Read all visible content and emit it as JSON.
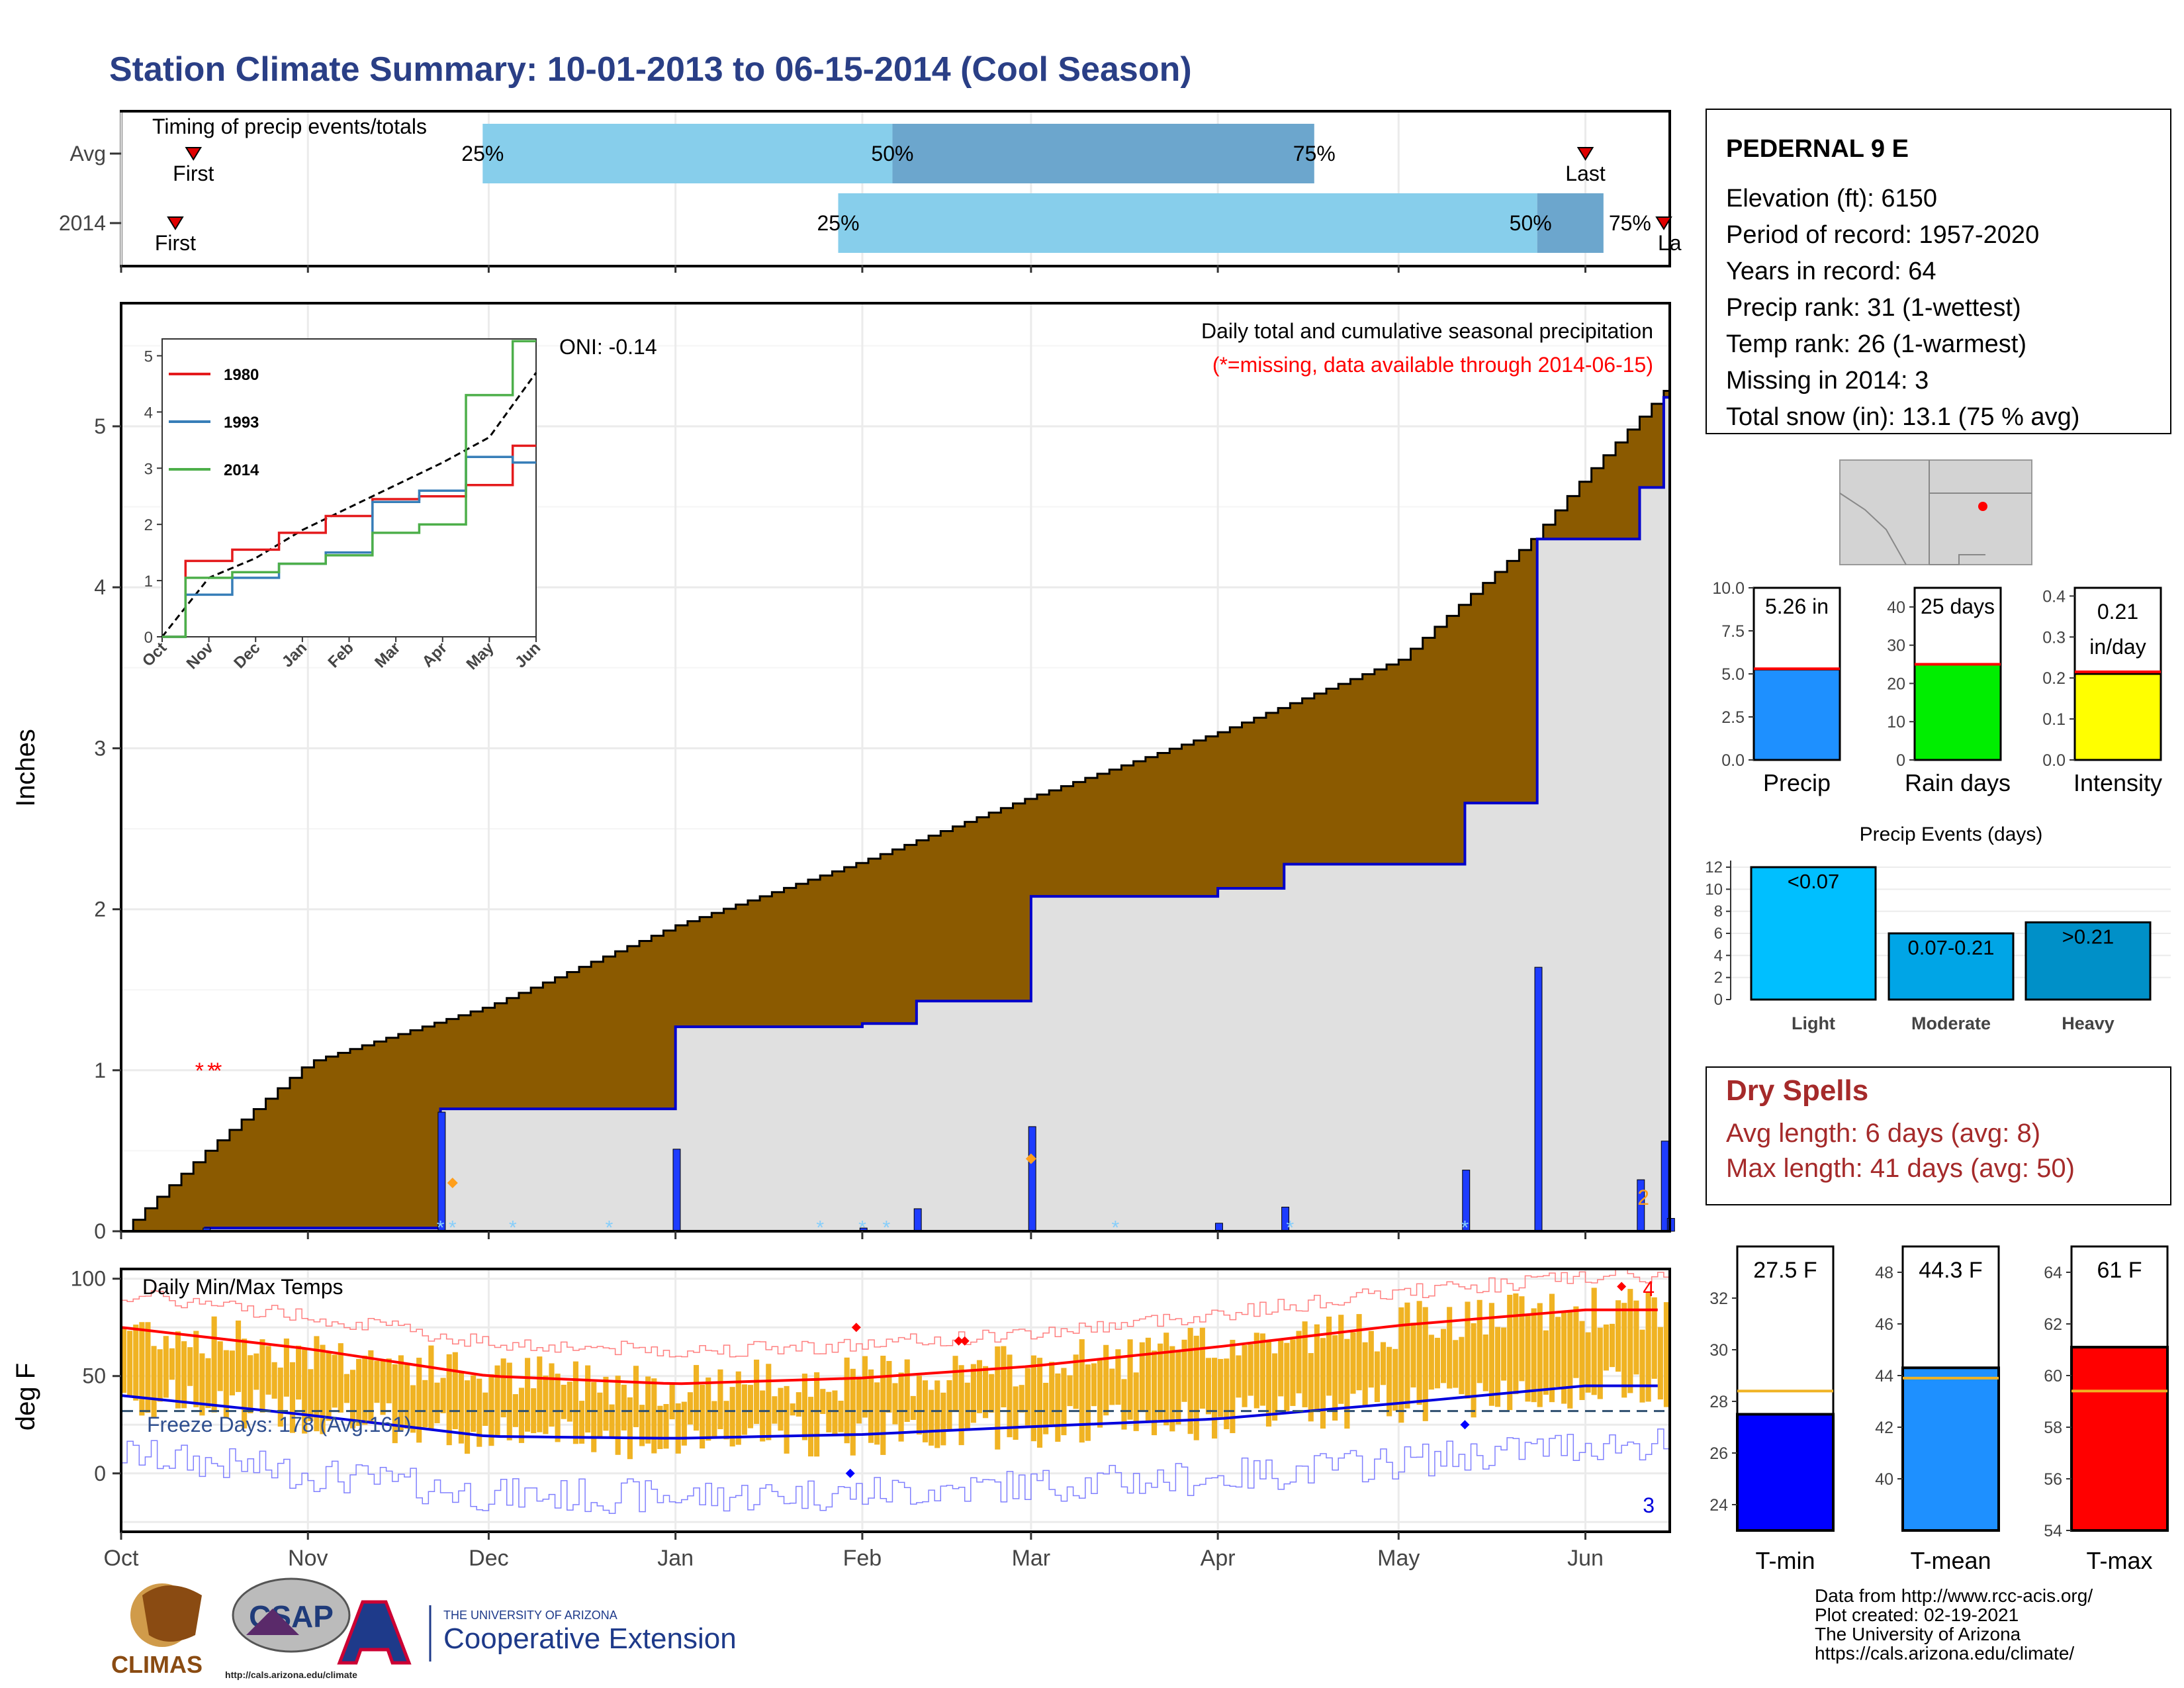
{
  "title": "Station Climate Summary: 10-01-2013 to 06-15-2014 (Cool Season)",
  "timing": {
    "title": "Timing of precip events/totals",
    "rows": [
      {
        "label": "Avg",
        "first": "Oct 13",
        "last": "Jun 1",
        "p25": "Nov 30",
        "p50": "Feb 6",
        "p75": "Apr 17"
      },
      {
        "label": "2014",
        "first": "Oct 10",
        "last": "Jun 15",
        "p25": "Jan 28",
        "p50": "May 24",
        "p75": "Jun 4"
      }
    ],
    "first_label": "First",
    "last_label": "Last",
    "last_label_clipped": "La",
    "pct_labels": [
      "25%",
      "50%",
      "75%"
    ],
    "colors": {
      "light": "#87ceeb",
      "mid": "#6ca6cd",
      "marker": "#e00000"
    }
  },
  "main": {
    "ylabel": "Inches",
    "yticks": [
      0,
      1,
      2,
      3,
      4,
      5
    ],
    "annotation_title": "Daily total and cumulative seasonal precipitation",
    "annotation_missing": "(*=missing, data available through 2014-06-15)",
    "oni": "ONI: -0.14",
    "corner_count": "2",
    "colors": {
      "deficit": "#8b5a00",
      "surplus": "#1f9e1f",
      "fill": "#e0e0e0",
      "line": "#0000cc",
      "missing": "#ff0000",
      "snow": "#87cefa",
      "marker": "#ff9f1c"
    }
  },
  "inset": {
    "yticks": [
      0,
      1,
      2,
      3,
      4,
      5
    ],
    "xticks": [
      "Oct",
      "Nov",
      "Dec",
      "Jan",
      "Feb",
      "Mar",
      "Apr",
      "May",
      "Jun"
    ],
    "legend": [
      {
        "name": "1980",
        "color": "#e41a1c"
      },
      {
        "name": "1993",
        "color": "#377eb8"
      },
      {
        "name": "2014",
        "color": "#4daf4a"
      }
    ]
  },
  "temps": {
    "ylabel": "deg F",
    "yticks": [
      0,
      50,
      100
    ],
    "title": "Daily Min/Max Temps",
    "freeze_label": "Freeze Days: 178 (Avg:161)",
    "count_top": "4",
    "count_bottom": "3",
    "xticks": [
      "Oct",
      "Nov",
      "Dec",
      "Jan",
      "Feb",
      "Mar",
      "Apr",
      "May",
      "Jun"
    ],
    "colors": {
      "bars": "#f0b323",
      "max_avg": "#ff0000",
      "min_avg": "#0000dd",
      "freeze": "#2f4f6f"
    }
  },
  "station": {
    "name": "PEDERNAL 9 E",
    "lines": [
      "Elevation (ft): 6150",
      "Period of record: 1957-2020",
      "Years in record: 64",
      "Precip rank: 31 (1-wettest)",
      "Temp rank: 26 (1-warmest)",
      "Missing in 2014: 3",
      "Total snow (in): 13.1 (75 % avg)"
    ]
  },
  "mini_bars": [
    {
      "label": "Precip",
      "value_label": "5.26 in",
      "value": 5.26,
      "avg": 5.3,
      "ymax": 10,
      "ticks": [
        "0.0",
        "2.5",
        "5.0",
        "7.5",
        "10.0"
      ],
      "tickvals": [
        0,
        2.5,
        5,
        7.5,
        10
      ],
      "color": "#1e90ff"
    },
    {
      "label": "Rain days",
      "value_label": "25 days",
      "value": 25,
      "avg": 25,
      "ymax": 45,
      "ticks": [
        "0",
        "10",
        "20",
        "30",
        "40"
      ],
      "tickvals": [
        0,
        10,
        20,
        30,
        40
      ],
      "color": "#00ee00"
    },
    {
      "label": "Intensity",
      "value_label": "0.21",
      "value_label2": "in/day",
      "value": 0.21,
      "avg": 0.215,
      "ymax": 0.42,
      "ticks": [
        "0.0",
        "0.1",
        "0.2",
        "0.3",
        "0.4"
      ],
      "tickvals": [
        0,
        0.1,
        0.2,
        0.3,
        0.4
      ],
      "color": "#ffff00"
    }
  ],
  "events": {
    "title": "Precip Events (days)",
    "yticks": [
      0,
      2,
      4,
      6,
      8,
      10,
      12
    ],
    "bars": [
      {
        "category": "Light",
        "label": "<0.07",
        "value": 12,
        "color": "#00bfff"
      },
      {
        "category": "Moderate",
        "label": "0.07-0.21",
        "value": 6,
        "color": "#00a5e6"
      },
      {
        "category": "Heavy",
        "label": ">0.21",
        "value": 7,
        "color": "#0090c8"
      }
    ]
  },
  "dry_spells": {
    "title": "Dry Spells",
    "avg": "Avg length: 6 days (avg: 8)",
    "max": "Max length: 41 days (avg: 50)",
    "color": "#a52a2a"
  },
  "temp_bars": [
    {
      "label": "T-min",
      "value_label": "27.5 F",
      "value": 27.5,
      "avg": 28.4,
      "ymin": 23,
      "ymax": 34,
      "ticks": [
        24,
        26,
        28,
        30,
        32
      ],
      "color": "#0000ff"
    },
    {
      "label": "T-mean",
      "value_label": "44.3 F",
      "value": 44.3,
      "avg": 43.9,
      "ymin": 38,
      "ymax": 49,
      "ticks": [
        40,
        42,
        44,
        46,
        48
      ],
      "color": "#1e90ff"
    },
    {
      "label": "T-max",
      "value_label": "61 F",
      "value": 61.1,
      "avg": 59.4,
      "ymin": 54,
      "ymax": 65,
      "ticks": [
        54,
        56,
        58,
        60,
        62,
        64
      ],
      "color": "#ff0000"
    }
  ],
  "credits": [
    "Data from http://www.rcc-acis.org/",
    "Plot created: 02-19-2021",
    "The University of Arizona",
    "https://cals.arizona.edu/climate/"
  ],
  "logos": {
    "climas": "CLIMAS",
    "csap": "CSAP",
    "csap_url": "http://cals.arizona.edu/climate",
    "ua_small": "THE UNIVERSITY OF ARIZONA",
    "ua_big": "Cooperative Extension"
  },
  "chart_data": [
    {
      "type": "area",
      "title": "Daily total and cumulative seasonal precipitation",
      "ylabel": "Inches",
      "ylim": [
        0,
        5.7
      ],
      "x_range": [
        "2013-10-01",
        "2014-06-15"
      ],
      "series": [
        {
          "name": "cumulative",
          "x": [
            "2013-10-01",
            "2013-10-15",
            "2013-11-01",
            "2013-11-23",
            "2013-12-05",
            "2014-01-01",
            "2014-01-15",
            "2014-02-01",
            "2014-02-10",
            "2014-03-01",
            "2014-03-15",
            "2014-04-01",
            "2014-04-12",
            "2014-05-01",
            "2014-05-12",
            "2014-05-23",
            "2014-05-24",
            "2014-06-10",
            "2014-06-14",
            "2014-06-15"
          ],
          "values": [
            0,
            0.02,
            0.02,
            0.76,
            0.76,
            1.27,
            1.27,
            1.29,
            1.43,
            2.08,
            2.08,
            2.13,
            2.28,
            2.28,
            2.66,
            2.66,
            4.3,
            4.62,
            5.18,
            5.26
          ]
        },
        {
          "name": "",
          "x": [
            "2013-10-01",
            "2013-10-15",
            "2013-11-01",
            "2013-12-01",
            "2014-01-01",
            "2014-02-01",
            "2014-03-01",
            "2014-04-01",
            "2014-05-01",
            "2014-05-23",
            "2014-06-01",
            "2014-06-15"
          ],
          "values": [
            0,
            0.5,
            1.05,
            1.4,
            1.9,
            2.3,
            2.7,
            3.1,
            3.55,
            4.3,
            4.7,
            5.26
          ]
        }
      ]
    },
    {
      "type": "line",
      "x": [
        "Oct",
        "Nov",
        "Dec",
        "Jan",
        "Feb",
        "Mar",
        "Apr",
        "May",
        "Jun"
      ],
      "ylim": [
        0,
        5.3
      ],
      "series": [
        {
          "name": "1980",
          "values": [
            0,
            1.35,
            1.55,
            1.85,
            2.15,
            2.45,
            2.5,
            2.7,
            3.4
          ]
        },
        {
          "name": "1993",
          "values": [
            0,
            0.75,
            1.05,
            1.3,
            1.5,
            2.4,
            2.6,
            3.2,
            3.1
          ]
        },
        {
          "name": "2014",
          "values": [
            0,
            1.05,
            1.15,
            1.3,
            1.45,
            1.85,
            2.0,
            4.3,
            5.26
          ]
        }
      ]
    },
    {
      "type": "bar",
      "title": "Daily Min/Max Temps",
      "ylabel": "deg F",
      "ylim": [
        -30,
        105
      ],
      "x": [
        "Oct",
        "Nov",
        "Dec",
        "Jan",
        "Feb",
        "Mar",
        "Apr",
        "May",
        "Jun"
      ],
      "series": [
        {
          "name": "max",
          "values": [
            75,
            64,
            50,
            46,
            49,
            55,
            65,
            76,
            84
          ]
        },
        {
          "name": "min",
          "values": [
            40,
            30,
            19,
            18,
            20,
            24,
            28,
            36,
            45
          ]
        }
      ]
    }
  ]
}
